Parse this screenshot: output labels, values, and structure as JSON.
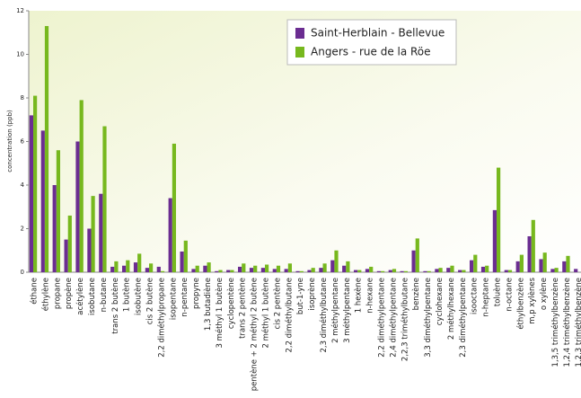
{
  "chart_data": {
    "type": "bar",
    "y_label": "concentration (ppb)",
    "categories": [
      "éthane",
      "éthylène",
      "propane",
      "propène",
      "acétylène",
      "isobutane",
      "n-butane",
      "trans 2 butène",
      "1 butène",
      "isobutène",
      "cis 2 butène",
      "2,2 diméthylpropane",
      "isopentane",
      "n-pentane",
      "propyne",
      "1,3 butadiène",
      "3 méthyl 1 butène",
      "cyclopentène",
      "trans 2 pentène",
      "pentène + 2 méthyl 2 butène",
      "2 méthyl 1 butène",
      "cis 2 pentène",
      "2,2 diméthylbutane",
      "but-1-yne",
      "isoprène",
      "2,3 diméthylbutane",
      "2 méthylpentane",
      "3 méthylpentane",
      "1 hexène",
      "n-hexane",
      "2,2 diméthylpentane",
      "2,4 diméthylpentane",
      "2,2,3 triméthylbutane",
      "benzène",
      "3,3 diméthylpentane",
      "cyclohexane",
      "2 méthylhexane",
      "2,3 diméthylpentane",
      "isooctane",
      "n-heptane",
      "toluène",
      "n-octane",
      "éthylbenzène",
      "m,p xylènes",
      "o xylène",
      "1,3,5 triméthylbenzène",
      "1,2,4 triméthylbenzène",
      "1,2,3 triméthylbenzène"
    ],
    "series": [
      {
        "name": "Saint-Herblain - Bellevue",
        "color": "#6b2d91",
        "values": [
          7.2,
          6.5,
          4.0,
          1.5,
          6.0,
          2.0,
          3.6,
          0.25,
          0.3,
          0.45,
          0.2,
          0.25,
          3.4,
          0.95,
          0.15,
          0.3,
          0.05,
          0.1,
          0.25,
          0.2,
          0.2,
          0.15,
          0.15,
          0.05,
          0.1,
          0.2,
          0.55,
          0.3,
          0.1,
          0.15,
          0.05,
          0.1,
          0.05,
          1.0,
          0.05,
          0.15,
          0.2,
          0.1,
          0.55,
          0.25,
          2.85,
          0.1,
          0.5,
          1.65,
          0.6,
          0.15,
          0.5,
          0.15
        ]
      },
      {
        "name": "Angers - rue de la Röe",
        "color": "#77b81e",
        "values": [
          8.1,
          11.3,
          5.6,
          2.6,
          7.9,
          3.5,
          6.7,
          0.5,
          0.55,
          0.85,
          0.4,
          0.05,
          5.9,
          1.45,
          0.3,
          0.45,
          0.1,
          0.1,
          0.4,
          0.3,
          0.35,
          0.3,
          0.4,
          0.05,
          0.2,
          0.4,
          1.0,
          0.5,
          0.1,
          0.25,
          0.05,
          0.15,
          0.05,
          1.55,
          0.05,
          0.2,
          0.3,
          0.1,
          0.8,
          0.3,
          4.8,
          0.1,
          0.8,
          2.4,
          0.9,
          0.2,
          0.75,
          null
        ]
      }
    ],
    "ylim": [
      0,
      12
    ],
    "yticks": [
      0,
      2,
      4,
      6,
      8,
      10,
      12
    ]
  }
}
